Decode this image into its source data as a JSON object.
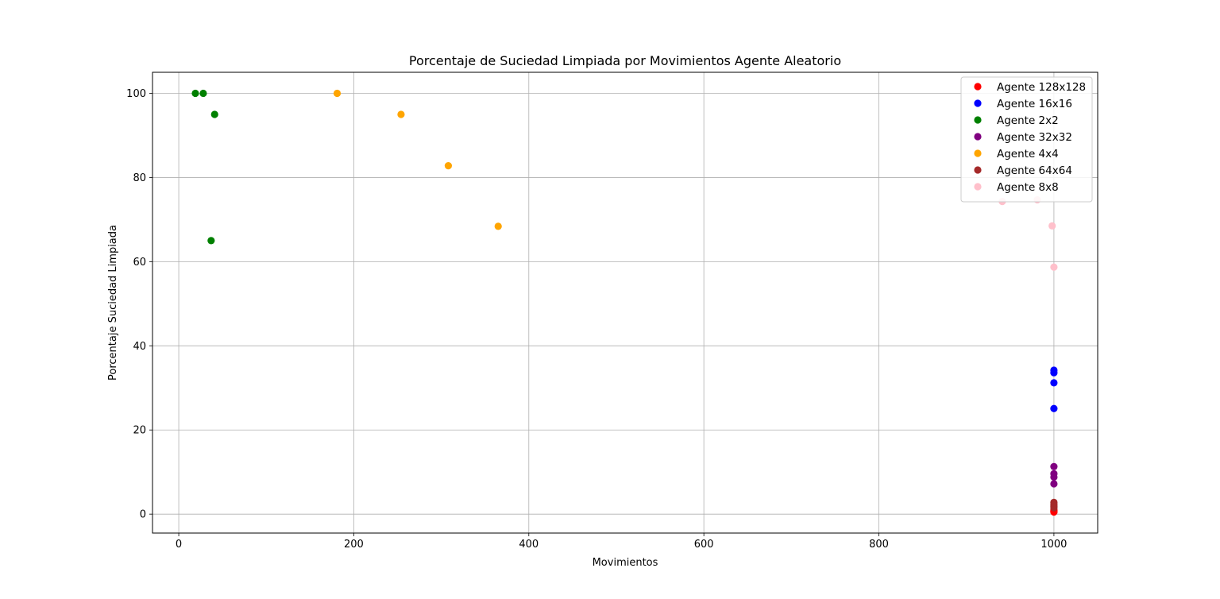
{
  "chart_data": {
    "type": "scatter",
    "title": "Porcentaje de Suciedad Limpiada por Movimientos Agente Aleatorio",
    "xlabel": "Movimientos",
    "ylabel": "Porcentaje Suciedad Limpiada",
    "xlim": [
      -30,
      1050
    ],
    "ylim": [
      -4.5,
      105
    ],
    "xticks": [
      0,
      200,
      400,
      600,
      800,
      1000
    ],
    "yticks": [
      0,
      20,
      40,
      60,
      80,
      100
    ],
    "grid": true,
    "legend_position": "top-right",
    "series": [
      {
        "name": "Agente 128x128",
        "color": "#ff0000",
        "points": [
          [
            1000,
            0.5
          ],
          [
            1000,
            0.8
          ],
          [
            1000,
            1.0
          ],
          [
            1000,
            0.6
          ],
          [
            1000,
            0.7
          ]
        ]
      },
      {
        "name": "Agente 16x16",
        "color": "#0000ff",
        "points": [
          [
            1000,
            34.2
          ],
          [
            1000,
            33.6
          ],
          [
            1000,
            31.2
          ],
          [
            1000,
            25.1
          ]
        ]
      },
      {
        "name": "Agente 2x2",
        "color": "#008000",
        "points": [
          [
            19,
            100
          ],
          [
            28,
            100
          ],
          [
            41,
            95
          ],
          [
            37,
            65
          ]
        ]
      },
      {
        "name": "Agente 32x32",
        "color": "#800080",
        "points": [
          [
            1000,
            11.3
          ],
          [
            1000,
            9.6
          ],
          [
            1000,
            8.8
          ],
          [
            1000,
            7.2
          ]
        ]
      },
      {
        "name": "Agente 4x4",
        "color": "#ffa500",
        "points": [
          [
            181,
            100
          ],
          [
            254,
            95
          ],
          [
            308,
            82.8
          ],
          [
            365,
            68.4
          ]
        ]
      },
      {
        "name": "Agente 64x64",
        "color": "#a52a2a",
        "points": [
          [
            1000,
            2.8
          ],
          [
            1000,
            2.4
          ],
          [
            1000,
            1.9
          ],
          [
            1000,
            1.5
          ]
        ]
      },
      {
        "name": "Agente 8x8",
        "color": "#ffc0cb",
        "points": [
          [
            941,
            74.3
          ],
          [
            981,
            74.7
          ],
          [
            998,
            68.5
          ],
          [
            1000,
            58.7
          ]
        ]
      }
    ]
  }
}
